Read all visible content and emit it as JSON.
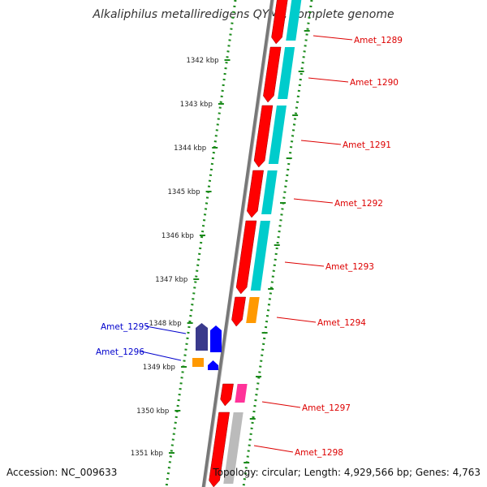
{
  "title": "Alkaliphilus metalliredigens QYMF, complete genome",
  "footer": {
    "accession": "Accession: NC_009633",
    "summary": "Topology: circular; Length: 4,929,566 bp; Genes: 4,763"
  },
  "ruler_ticks": [
    {
      "label": "1342 kbp",
      "kbp": 1342
    },
    {
      "label": "1343 kbp",
      "kbp": 1343
    },
    {
      "label": "1344 kbp",
      "kbp": 1344
    },
    {
      "label": "1345 kbp",
      "kbp": 1345
    },
    {
      "label": "1346 kbp",
      "kbp": 1346
    },
    {
      "label": "1347 kbp",
      "kbp": 1347
    },
    {
      "label": "1348 kbp",
      "kbp": 1348
    },
    {
      "label": "1349 kbp",
      "kbp": 1349
    },
    {
      "label": "1350 kbp",
      "kbp": 1350
    },
    {
      "label": "1351 kbp",
      "kbp": 1351
    }
  ],
  "genes": [
    {
      "label": "Amet_1289",
      "color": "#ff0000",
      "strand": "forward"
    },
    {
      "label": "Amet_1290",
      "color": "#ff0000",
      "strand": "forward"
    },
    {
      "label": "Amet_1291",
      "color": "#ff0000",
      "strand": "forward"
    },
    {
      "label": "Amet_1292",
      "color": "#ff0000",
      "strand": "forward"
    },
    {
      "label": "Amet_1293",
      "color": "#ff0000",
      "strand": "forward"
    },
    {
      "label": "Amet_1294",
      "color": "#ff0000",
      "strand": "forward"
    },
    {
      "label": "Amet_1295",
      "color": "#0000cc",
      "strand": "reverse"
    },
    {
      "label": "Amet_1296",
      "color": "#0000cc",
      "strand": "reverse"
    },
    {
      "label": "Amet_1297",
      "color": "#ff0000",
      "strand": "forward"
    },
    {
      "label": "Amet_1298",
      "color": "#ff0000",
      "strand": "forward"
    }
  ],
  "colors": {
    "forward_gene": "#ff0000",
    "reverse_gene": "#0000ff",
    "reverse_cog_dark": "#3a3a8c",
    "cog_cyan": "#00cccc",
    "cog_orange": "#ff9900",
    "cog_pink": "#ff3399",
    "cog_grey": "#bbbbbb",
    "backbone": "#777777",
    "ruler": "#1a8a1a",
    "forward_label": "#dd0000",
    "reverse_label": "#0000cc"
  }
}
